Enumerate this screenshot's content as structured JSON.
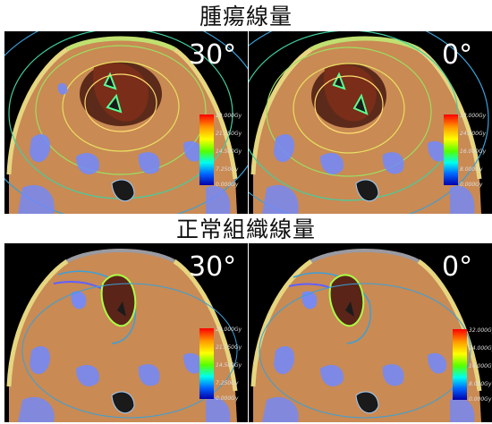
{
  "sections": [
    {
      "title": "腫瘍線量",
      "panels": [
        {
          "angle": "30°"
        },
        {
          "angle": "0°"
        }
      ]
    },
    {
      "title": "正常組織線量",
      "panels": [
        {
          "angle": "30°"
        },
        {
          "angle": "0°"
        }
      ]
    }
  ],
  "colorbars": {
    "left": [
      "29.000Gy",
      "21.750Gy",
      "14.500Gy",
      "7.250Gy",
      "0.000Gy"
    ],
    "right": [
      "32.000Gy",
      "24.000Gy",
      "16.000Gy",
      "8.000Gy",
      "0.000Gy"
    ]
  }
}
